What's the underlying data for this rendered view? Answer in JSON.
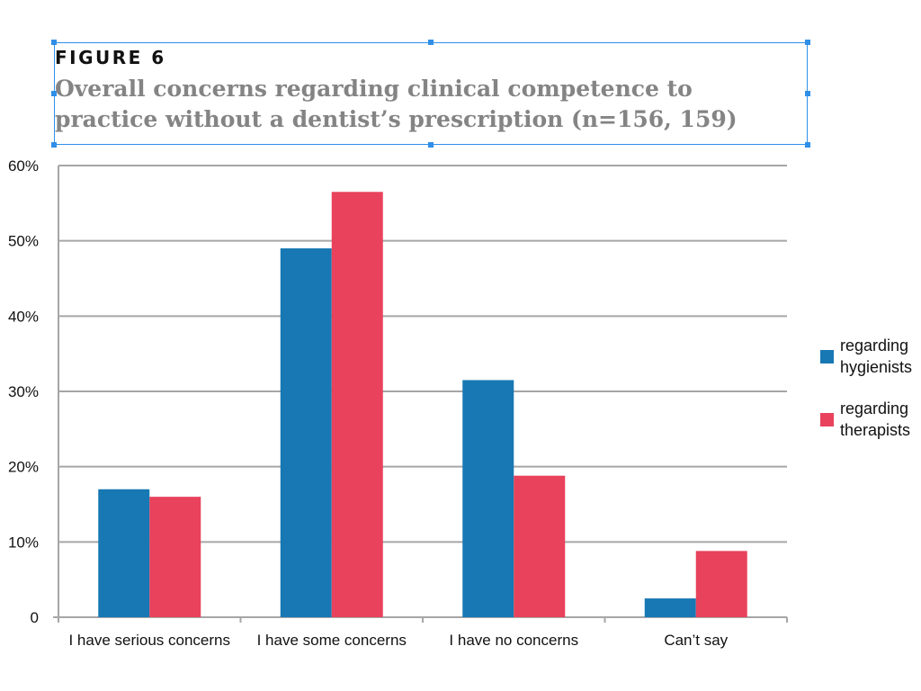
{
  "figure": {
    "label": "FIGURE 6",
    "title": "Overall concerns regarding clinical competence to practice without a dentist’s prescription (n=156, 159)"
  },
  "colors": {
    "hygienists": "#1878b4",
    "therapists": "#e8425c",
    "grid": "#a6a6a6",
    "selection": "#2f8fe8"
  },
  "chart_data": {
    "type": "bar",
    "title": "Overall concerns regarding clinical competence to practice without a dentist’s prescription (n=156, 159)",
    "categories": [
      "I have serious concerns",
      "I have some concerns",
      "I have no concerns",
      "Can’t say"
    ],
    "series": [
      {
        "name": "regarding hygienists",
        "values": [
          17,
          49,
          31.5,
          2.5
        ]
      },
      {
        "name": "regarding therapists",
        "values": [
          16,
          56.5,
          18.8,
          8.8
        ]
      }
    ],
    "yticks": [
      {
        "value": 0,
        "label": "0"
      },
      {
        "value": 10,
        "label": "10%"
      },
      {
        "value": 20,
        "label": "20%"
      },
      {
        "value": 30,
        "label": "30%"
      },
      {
        "value": 40,
        "label": "40%"
      },
      {
        "value": 50,
        "label": "50%"
      },
      {
        "value": 60,
        "label": "60%"
      }
    ],
    "ylim": [
      0,
      60
    ],
    "xlabel": "",
    "ylabel": "",
    "grid": true,
    "legend_position": "right"
  }
}
